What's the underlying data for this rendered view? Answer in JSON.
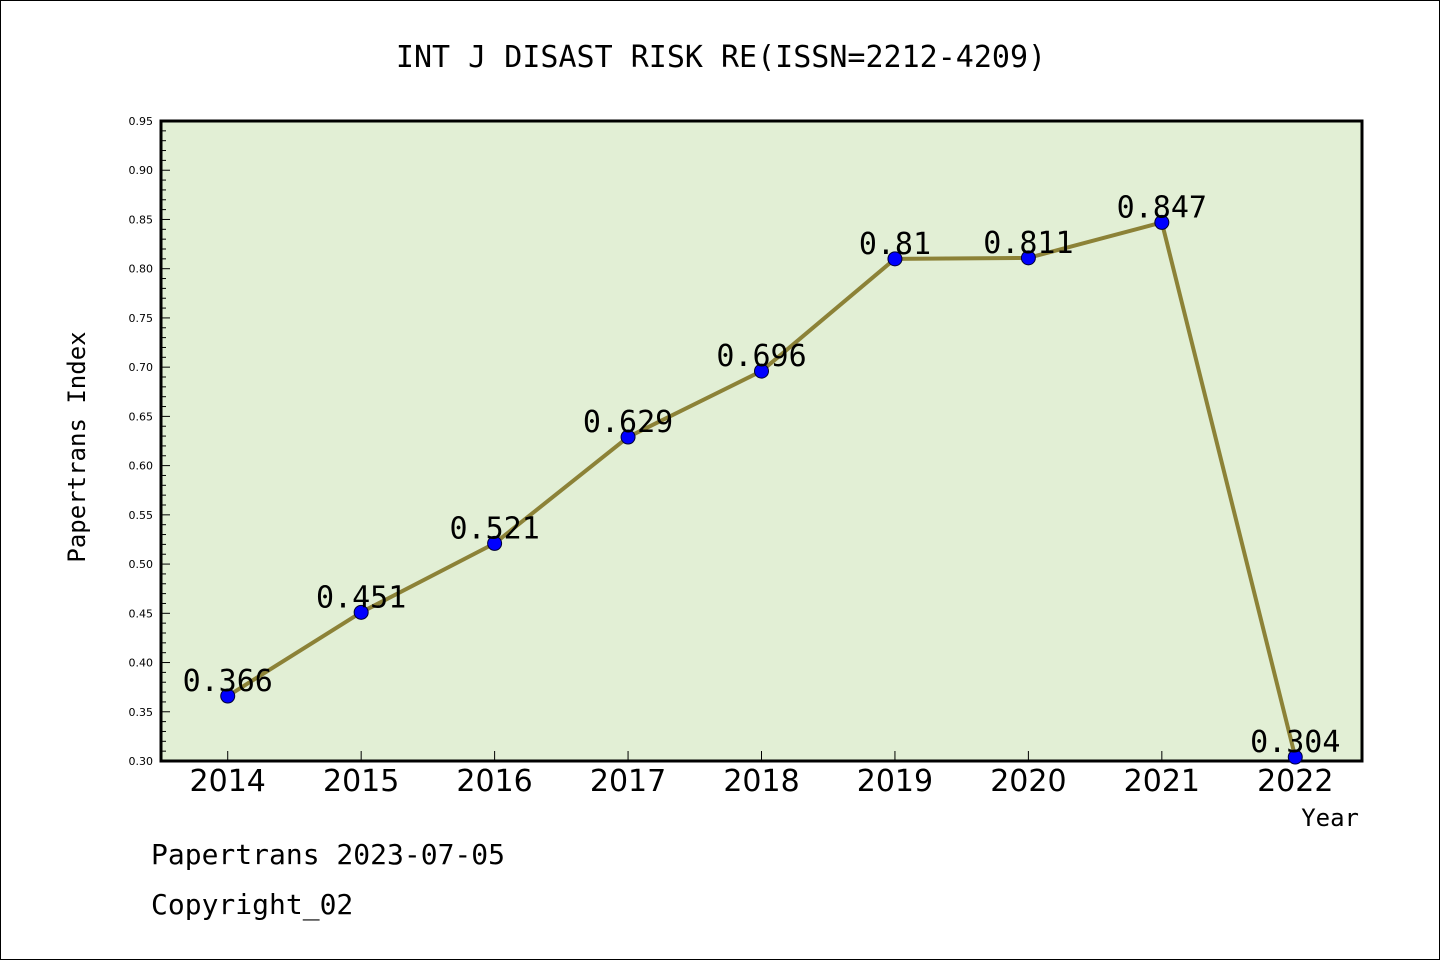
{
  "chart_data": {
    "type": "line",
    "title": "INT J DISAST RISK RE(ISSN=2212-4209)",
    "xlabel": "Year",
    "ylabel": "Papertrans Index",
    "categories": [
      "2014",
      "2015",
      "2016",
      "2017",
      "2018",
      "2019",
      "2020",
      "2021",
      "2022"
    ],
    "series": [
      {
        "values": [
          0.366,
          0.451,
          0.521,
          0.629,
          0.696,
          0.81,
          0.811,
          0.847,
          0.304
        ],
        "labels": [
          "0.366",
          "0.451",
          "0.521",
          "0.629",
          "0.696",
          "0.81",
          "0.811",
          "0.847",
          "0.304"
        ],
        "line_color": "#8c8237",
        "marker_color": "#0000ff"
      }
    ],
    "ylim": [
      0.3,
      0.95
    ],
    "yticks": [
      "0.30",
      "0.35",
      "0.40",
      "0.45",
      "0.50",
      "0.55",
      "0.60",
      "0.65",
      "0.70",
      "0.75",
      "0.80",
      "0.85",
      "0.90",
      "0.95"
    ],
    "plot_background": "#e2efd5",
    "grid": false,
    "legend": "none"
  },
  "footer": {
    "line1": "Papertrans 2023-07-05",
    "line2": "Copyright_02"
  }
}
